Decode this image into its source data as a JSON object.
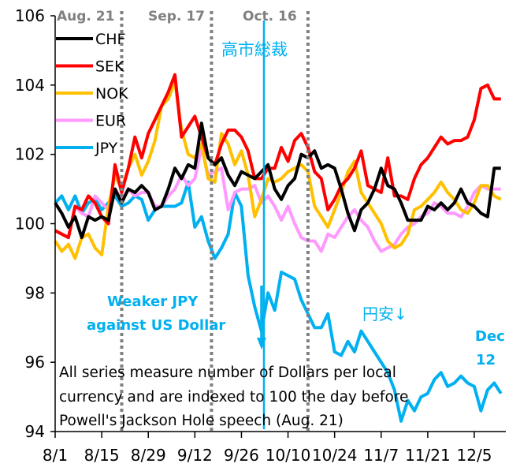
{
  "chart_data": {
    "type": "line",
    "title": "",
    "xlabel": "",
    "ylabel": "",
    "ylim": [
      94,
      106
    ],
    "yticks": [
      94,
      96,
      98,
      100,
      102,
      104,
      106
    ],
    "xticks": [
      "8/1",
      "8/15",
      "8/29",
      "9/12",
      "9/26",
      "10/10",
      "10/24",
      "11/7",
      "11/21",
      "12/5"
    ],
    "x_range_days": [
      0,
      134
    ],
    "grid": false,
    "legend": {
      "placement": "top-left",
      "entries": [
        "CHF",
        "SEK",
        "NOK",
        "EUR",
        "JPY"
      ]
    },
    "series": [
      {
        "name": "CHF",
        "color": "#000000",
        "x": [
          0,
          2,
          4,
          6,
          8,
          10,
          12,
          14,
          16,
          18,
          20,
          22,
          24,
          26,
          28,
          30,
          32,
          34,
          36,
          38,
          40,
          42,
          44,
          46,
          48,
          50,
          52,
          54,
          56,
          58,
          60,
          62,
          64,
          66,
          68,
          70,
          72,
          74,
          76,
          78,
          80,
          82,
          84,
          86,
          88,
          90,
          92,
          94,
          96,
          98,
          100,
          102,
          104,
          106,
          108,
          110,
          112,
          114,
          116,
          118,
          120,
          122,
          124,
          126,
          128,
          130,
          132,
          134
        ],
        "values": [
          100.6,
          100.3,
          99.9,
          100.2,
          99.6,
          100.2,
          100.1,
          100.2,
          100.1,
          101.0,
          100.6,
          101.0,
          100.9,
          101.1,
          100.9,
          100.4,
          100.5,
          101.0,
          101.6,
          101.3,
          101.7,
          101.6,
          102.9,
          101.9,
          101.7,
          101.9,
          101.4,
          101.1,
          101.5,
          101.4,
          101.3,
          101.5,
          101.7,
          101.0,
          100.7,
          101.1,
          101.3,
          102.0,
          101.9,
          102.1,
          101.6,
          101.7,
          101.6,
          101.0,
          100.3,
          99.8,
          100.4,
          100.6,
          101.0,
          101.6,
          101.1,
          101.0,
          100.6,
          100.1,
          100.1,
          100.1,
          100.5,
          100.4,
          100.6,
          100.4,
          100.6,
          101.0,
          100.6,
          100.5,
          100.3,
          100.2,
          101.6,
          101.6
        ]
      },
      {
        "name": "SEK",
        "color": "#ff0000",
        "x": [
          0,
          2,
          4,
          6,
          8,
          10,
          12,
          14,
          16,
          18,
          20,
          22,
          24,
          26,
          28,
          30,
          32,
          34,
          36,
          38,
          40,
          42,
          44,
          46,
          48,
          50,
          52,
          54,
          56,
          58,
          60,
          62,
          64,
          66,
          68,
          70,
          72,
          74,
          76,
          78,
          80,
          82,
          84,
          86,
          88,
          90,
          92,
          94,
          96,
          98,
          100,
          102,
          104,
          106,
          108,
          110,
          112,
          114,
          116,
          118,
          120,
          122,
          124,
          126,
          128,
          130,
          132,
          134
        ],
        "values": [
          99.8,
          99.7,
          99.6,
          100.5,
          100.4,
          100.8,
          100.6,
          100.2,
          100.0,
          101.7,
          100.9,
          101.6,
          102.5,
          101.9,
          102.6,
          103.0,
          103.4,
          103.8,
          104.3,
          102.5,
          102.8,
          103.1,
          102.5,
          101.9,
          101.7,
          102.3,
          102.7,
          102.7,
          102.5,
          102.1,
          101.3,
          101.3,
          101.6,
          101.6,
          102.2,
          101.8,
          102.4,
          102.6,
          102.2,
          101.5,
          101.3,
          100.4,
          100.7,
          101.1,
          101.3,
          101.6,
          102.1,
          101.1,
          101.0,
          100.9,
          101.9,
          100.8,
          100.8,
          100.7,
          101.3,
          101.7,
          101.9,
          102.2,
          102.5,
          102.3,
          102.4,
          102.4,
          102.5,
          103.0,
          103.9,
          104.0,
          103.6,
          103.6
        ]
      },
      {
        "name": "NOK",
        "color": "#ffc000",
        "x": [
          0,
          2,
          4,
          6,
          8,
          10,
          12,
          14,
          16,
          18,
          20,
          22,
          24,
          26,
          28,
          30,
          32,
          34,
          36,
          38,
          40,
          42,
          44,
          46,
          48,
          50,
          52,
          54,
          56,
          58,
          60,
          62,
          64,
          66,
          68,
          70,
          72,
          74,
          76,
          78,
          80,
          82,
          84,
          86,
          88,
          90,
          92,
          94,
          96,
          98,
          100,
          102,
          104,
          106,
          108,
          110,
          112,
          114,
          116,
          118,
          120,
          122,
          124,
          126,
          128,
          130,
          132,
          134
        ],
        "values": [
          99.5,
          99.2,
          99.4,
          99.0,
          99.6,
          99.7,
          99.3,
          99.1,
          100.5,
          101.4,
          101.0,
          101.6,
          102.0,
          101.4,
          101.8,
          102.4,
          103.4,
          103.6,
          104.1,
          102.7,
          102.0,
          101.9,
          102.3,
          101.3,
          101.2,
          102.6,
          102.3,
          101.7,
          102.1,
          101.4,
          100.2,
          100.7,
          101.3,
          101.2,
          101.3,
          101.5,
          101.6,
          101.7,
          101.5,
          100.5,
          100.2,
          99.9,
          100.4,
          100.9,
          101.5,
          101.8,
          100.9,
          100.6,
          100.3,
          100.0,
          99.5,
          99.3,
          99.4,
          99.7,
          100.4,
          100.5,
          100.7,
          100.9,
          101.2,
          100.9,
          100.7,
          100.4,
          100.3,
          100.6,
          101.1,
          101.1,
          100.8,
          100.7
        ]
      },
      {
        "name": "EUR",
        "color": "#ff99ff",
        "x": [
          0,
          2,
          4,
          6,
          8,
          10,
          12,
          14,
          16,
          18,
          20,
          22,
          24,
          26,
          28,
          30,
          32,
          34,
          36,
          38,
          40,
          42,
          44,
          46,
          48,
          50,
          52,
          54,
          56,
          58,
          60,
          62,
          64,
          66,
          68,
          70,
          72,
          74,
          76,
          78,
          80,
          82,
          84,
          86,
          88,
          90,
          92,
          94,
          96,
          98,
          100,
          102,
          104,
          106,
          108,
          110,
          112,
          114,
          116,
          118,
          120,
          122,
          124,
          126,
          128,
          130,
          132,
          134
        ],
        "values": [
          99.8,
          99.7,
          99.6,
          100.5,
          100.3,
          100.2,
          100.8,
          100.6,
          100.4,
          101.0,
          100.7,
          101.0,
          100.8,
          100.9,
          100.9,
          100.5,
          100.5,
          100.8,
          101.0,
          101.4,
          101.1,
          101.3,
          102.2,
          101.4,
          101.5,
          101.6,
          100.4,
          100.9,
          101.0,
          101.0,
          101.1,
          100.6,
          100.8,
          100.5,
          100.1,
          100.5,
          100.0,
          99.6,
          99.5,
          99.5,
          99.2,
          99.7,
          99.6,
          99.9,
          100.2,
          100.4,
          100.1,
          99.9,
          99.5,
          99.2,
          99.3,
          99.4,
          99.7,
          99.9,
          100.0,
          100.2,
          100.3,
          100.6,
          100.5,
          100.3,
          100.3,
          100.2,
          100.5,
          100.9,
          101.1,
          101.0,
          101.0,
          101.0
        ]
      },
      {
        "name": "JPY",
        "color": "#00b0f0",
        "x": [
          0,
          2,
          4,
          6,
          8,
          10,
          12,
          14,
          16,
          18,
          20,
          22,
          24,
          26,
          28,
          30,
          32,
          34,
          36,
          38,
          40,
          42,
          44,
          46,
          48,
          50,
          52,
          54,
          56,
          58,
          60,
          62,
          64,
          66,
          68,
          70,
          72,
          74,
          76,
          78,
          80,
          82,
          84,
          86,
          88,
          90,
          92,
          94,
          96,
          98,
          100,
          102,
          104,
          106,
          108,
          110,
          112,
          114,
          116,
          118,
          120,
          122,
          124,
          126,
          128,
          130,
          132,
          134
        ],
        "values": [
          100.6,
          100.8,
          100.4,
          100.8,
          100.3,
          100.6,
          100.7,
          100.4,
          100.6,
          100.8,
          100.5,
          100.6,
          100.8,
          100.7,
          100.1,
          100.4,
          100.5,
          100.5,
          100.5,
          100.6,
          101.2,
          99.9,
          100.2,
          99.5,
          99.0,
          99.3,
          99.7,
          100.9,
          100.5,
          98.5,
          97.6,
          96.9,
          98.0,
          97.5,
          98.6,
          98.5,
          98.4,
          97.8,
          97.4,
          97.0,
          97.0,
          97.4,
          96.3,
          96.2,
          96.6,
          96.3,
          96.9,
          96.6,
          96.3,
          96.0,
          95.7,
          95.2,
          94.3,
          94.9,
          94.6,
          95.0,
          95.1,
          95.5,
          95.7,
          95.3,
          95.4,
          95.6,
          95.4,
          95.3,
          94.6,
          95.2,
          95.4,
          95.1
        ]
      }
    ],
    "event_lines": [
      {
        "label": "Aug. 21",
        "x_day": 20,
        "style": "dotted",
        "color": "#808080"
      },
      {
        "label": "Sep. 17",
        "x_day": 47,
        "style": "dotted",
        "color": "#808080"
      },
      {
        "label": "Oct. 16",
        "x_day": 76,
        "style": "dotted",
        "color": "#808080"
      },
      {
        "label": "高市総裁",
        "x_day": 63,
        "style": "solid",
        "color": "#00b0f0"
      }
    ],
    "annotations": [
      {
        "id": "takaichi",
        "text": "高市総裁",
        "color": "#00b0f0"
      },
      {
        "id": "weaker-jpy-1",
        "text": "Weaker JPY",
        "color": "#00b0f0"
      },
      {
        "id": "weaker-jpy-2",
        "text": "against US Dollar",
        "color": "#00b0f0"
      },
      {
        "id": "yen-weak",
        "text": "円安↓",
        "color": "#00b0f0"
      },
      {
        "id": "dec-1",
        "text": "Dec",
        "color": "#00b0f0"
      },
      {
        "id": "dec-2",
        "text": "12",
        "color": "#00b0f0"
      }
    ],
    "note": [
      "All series measure number of Dollars per local",
      "currency and are indexed to 100 the day before",
      "Powell's Jackson Hole speech (Aug. 21)"
    ]
  }
}
